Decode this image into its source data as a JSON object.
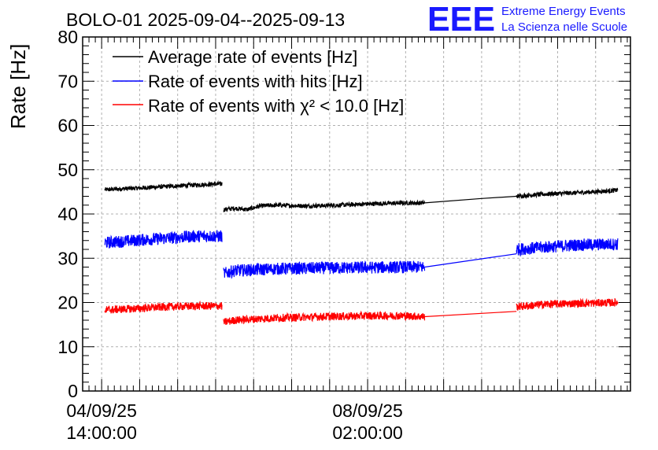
{
  "chart_data": {
    "type": "line",
    "title": "BOLO-01 2025-09-04--2025-09-13",
    "ylabel": "Rate [Hz]",
    "xlabel": "",
    "ylim": [
      0,
      80
    ],
    "yticks": [
      "0",
      "10",
      "20",
      "30",
      "40",
      "50",
      "60",
      "70",
      "80"
    ],
    "xticks": [
      {
        "date": "04/09/25",
        "time": "14:00:00"
      },
      {
        "date": "08/09/25",
        "time": "02:00:00"
      }
    ],
    "x_unit": "hours since 04/09/25 14:00:00",
    "xlim": [
      -6,
      167
    ],
    "grid": true,
    "legend_position": "top-left",
    "series": [
      {
        "name": "Average rate of events [Hz]",
        "color": "#000000",
        "noise": 0.5,
        "segments": [
          [
            [
              1,
              45.5
            ],
            [
              10,
              45.8
            ],
            [
              20,
              46.2
            ],
            [
              28,
              46.5
            ],
            [
              37,
              46.8
            ],
            [
              38,
              46.8
            ]
          ],
          [
            [
              38.5,
              41.0
            ],
            [
              42,
              41.3
            ],
            [
              46,
              41.0
            ],
            [
              50,
              41.8
            ],
            [
              55,
              42.0
            ],
            [
              65,
              41.8
            ],
            [
              75,
              42.0
            ],
            [
              85,
              42.3
            ],
            [
              95,
              42.5
            ],
            [
              102,
              42.5
            ]
          ],
          [
            [
              102,
              42.5
            ],
            [
              120,
              43.5
            ],
            [
              131,
              44.0
            ]
          ],
          [
            [
              131,
              44.0
            ],
            [
              140,
              44.5
            ],
            [
              150,
              44.8
            ],
            [
              160,
              45.2
            ],
            [
              163,
              45.4
            ]
          ]
        ]
      },
      {
        "name": "Rate of events with hits [Hz]",
        "color": "#0000ff",
        "noise": 1.4,
        "segments": [
          [
            [
              1,
              33.5
            ],
            [
              10,
              34.0
            ],
            [
              20,
              34.5
            ],
            [
              30,
              35.0
            ],
            [
              38,
              35.0
            ]
          ],
          [
            [
              38.5,
              26.5
            ],
            [
              42,
              27.2
            ],
            [
              55,
              27.6
            ],
            [
              70,
              27.8
            ],
            [
              85,
              27.9
            ],
            [
              95,
              28.0
            ],
            [
              102,
              28.0
            ]
          ],
          [
            [
              102,
              28.0
            ],
            [
              131,
              31.0
            ]
          ],
          [
            [
              131,
              32.0
            ],
            [
              140,
              32.5
            ],
            [
              150,
              33.0
            ],
            [
              163,
              33.2
            ]
          ]
        ]
      },
      {
        "name": "Rate of events with χ² < 10.0 [Hz]",
        "color": "#ff0000",
        "noise": 0.9,
        "segments": [
          [
            [
              1,
              18.3
            ],
            [
              10,
              18.6
            ],
            [
              20,
              19.0
            ],
            [
              30,
              19.2
            ],
            [
              38,
              19.2
            ]
          ],
          [
            [
              38.5,
              15.5
            ],
            [
              42,
              16.0
            ],
            [
              55,
              16.5
            ],
            [
              70,
              16.8
            ],
            [
              85,
              17.0
            ],
            [
              95,
              17.0
            ],
            [
              102,
              16.8
            ]
          ],
          [
            [
              102,
              16.8
            ],
            [
              131,
              18.0
            ]
          ],
          [
            [
              131,
              19.0
            ],
            [
              140,
              19.6
            ],
            [
              150,
              19.8
            ],
            [
              163,
              20.0
            ]
          ]
        ]
      }
    ]
  },
  "logo": {
    "mark": "EEE",
    "line1": "Extreme Energy Events",
    "line2": "La Scienza nelle Scuole",
    "color": "#1a1aff"
  }
}
